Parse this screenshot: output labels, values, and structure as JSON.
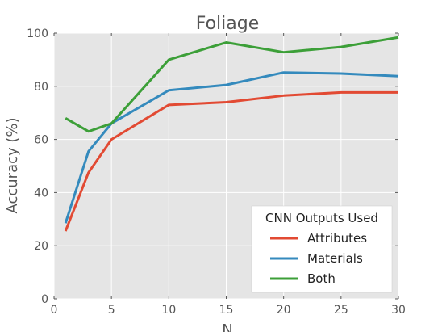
{
  "chart_data": {
    "type": "line",
    "title": "Foliage",
    "xlabel": "N",
    "ylabel": "Accuracy (%)",
    "xlim": [
      0,
      30
    ],
    "ylim": [
      0,
      100
    ],
    "x_ticks": [
      "0",
      "5",
      "10",
      "15",
      "20",
      "25",
      "30"
    ],
    "y_ticks": [
      "0",
      "20",
      "40",
      "60",
      "80",
      "100"
    ],
    "grid": true,
    "legend_title": "CNN Outputs Used",
    "legend_position": "lower-right",
    "x": [
      1,
      3,
      5,
      10,
      15,
      20,
      25,
      30
    ],
    "series": [
      {
        "name": "Attributes",
        "color": "#E24A33",
        "values": [
          25.5,
          47.5,
          60,
          73,
          74,
          76.5,
          77.7,
          77.7
        ]
      },
      {
        "name": "Materials",
        "color": "#348ABD",
        "values": [
          28.5,
          55.5,
          66,
          78.5,
          80.5,
          85.2,
          84.8,
          83.8
        ]
      },
      {
        "name": "Both",
        "color": "#3C9F38",
        "values": [
          68,
          63,
          66,
          90,
          96.5,
          92.8,
          94.8,
          98.4
        ]
      }
    ]
  }
}
